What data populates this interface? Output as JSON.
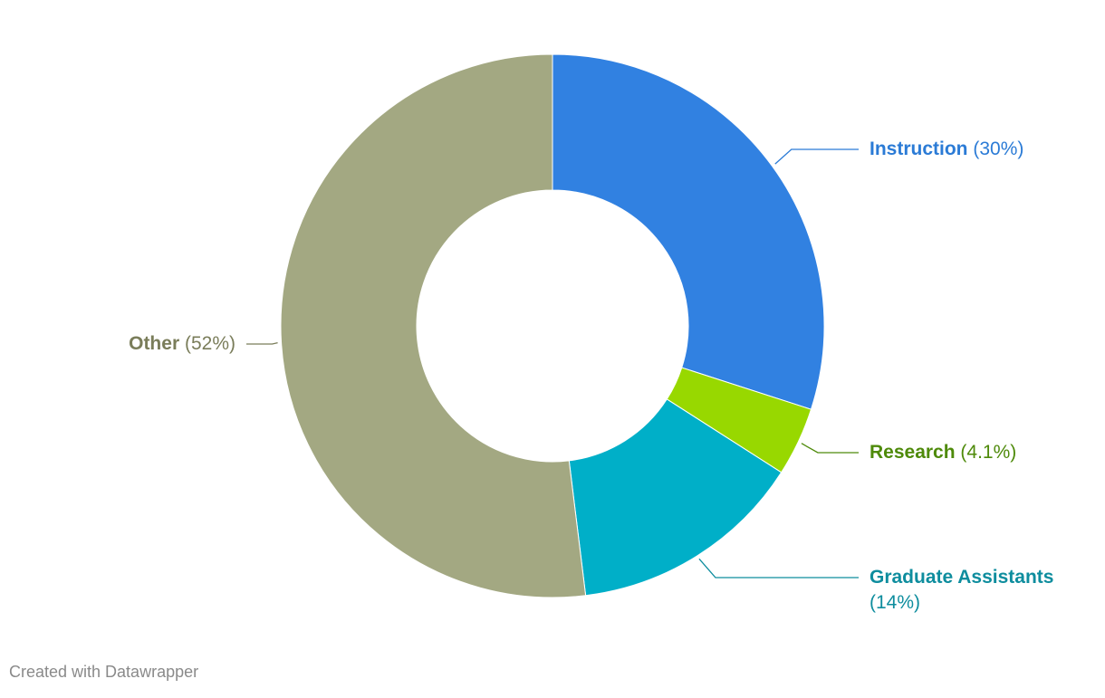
{
  "chart_data": {
    "type": "donut",
    "categories": [
      "Instruction",
      "Research",
      "Graduate Assistants",
      "Other"
    ],
    "values": [
      30,
      4.1,
      14,
      52
    ],
    "value_labels": [
      "(30%)",
      "(4.1%)",
      "(14%)",
      "(52%)"
    ],
    "colors": [
      "#3181e1",
      "#98d800",
      "#00afc8",
      "#a3a882"
    ],
    "label_colors": [
      "#2b7bd6",
      "#4e8a0a",
      "#0e8d9e",
      "#7a7d5a"
    ],
    "credit": "Created with Datawrapper"
  }
}
